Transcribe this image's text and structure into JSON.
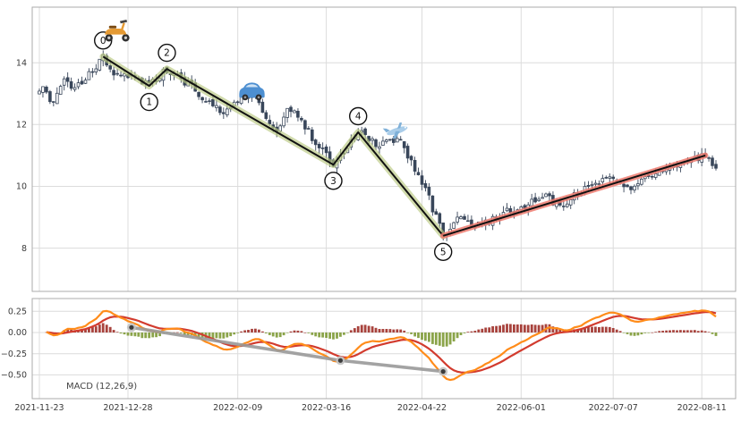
{
  "chart_data": {
    "type": "candlestick",
    "title": "",
    "panels": [
      {
        "id": "price",
        "y_domain": [
          6.6,
          15.8
        ]
      },
      {
        "id": "macd",
        "y_domain": [
          -0.78,
          0.4
        ]
      }
    ],
    "price_tick_labels": [
      {
        "value": 14,
        "label": "14"
      },
      {
        "value": 12,
        "label": "12"
      },
      {
        "value": 10,
        "label": "10"
      },
      {
        "value": 8,
        "label": "8"
      }
    ],
    "macd_tick_labels": [
      {
        "value": 0.25,
        "label": "0.25"
      },
      {
        "value": 0.0,
        "label": "0.00"
      },
      {
        "value": -0.25,
        "label": "−0.25"
      },
      {
        "value": -0.5,
        "label": "−0.50"
      }
    ],
    "x_tick_labels": [
      {
        "date": "2021-11-23",
        "label": "2021-11-23"
      },
      {
        "date": "2021-12-28",
        "label": "2021-12-28"
      },
      {
        "date": "2022-02-09",
        "label": "2022-02-09"
      },
      {
        "date": "2022-03-16",
        "label": "2022-03-16"
      },
      {
        "date": "2022-04-22",
        "label": "2022-04-22"
      },
      {
        "date": "2022-06-01",
        "label": "2022-06-01"
      },
      {
        "date": "2022-07-07",
        "label": "2022-07-07"
      },
      {
        "date": "2022-08-11",
        "label": "2022-08-11"
      }
    ],
    "date_start": "2021-11-23",
    "date_end": "2022-08-17",
    "price_path": [
      {
        "date": "2021-11-23",
        "price": 13.0
      },
      {
        "date": "2021-11-24",
        "price": 13.1
      },
      {
        "date": "2021-11-26",
        "price": 12.75
      },
      {
        "date": "2021-11-30",
        "price": 12.9
      },
      {
        "date": "2021-12-02",
        "price": 13.6
      },
      {
        "date": "2021-12-06",
        "price": 13.1
      },
      {
        "date": "2021-12-09",
        "price": 13.4
      },
      {
        "date": "2021-12-17",
        "price": 14.2
      },
      {
        "date": "2021-12-22",
        "price": 13.6
      },
      {
        "date": "2021-12-29",
        "price": 13.6
      },
      {
        "date": "2022-01-05",
        "price": 13.25
      },
      {
        "date": "2022-01-12",
        "price": 13.8
      },
      {
        "date": "2022-01-21",
        "price": 13.2
      },
      {
        "date": "2022-02-02",
        "price": 12.4
      },
      {
        "date": "2022-02-09",
        "price": 12.7
      },
      {
        "date": "2022-02-15",
        "price": 13.0
      },
      {
        "date": "2022-02-24",
        "price": 11.8
      },
      {
        "date": "2022-03-01",
        "price": 12.6
      },
      {
        "date": "2022-03-08",
        "price": 11.9
      },
      {
        "date": "2022-03-18",
        "price": 10.7
      },
      {
        "date": "2022-03-29",
        "price": 11.75
      },
      {
        "date": "2022-04-06",
        "price": 11.3
      },
      {
        "date": "2022-04-13",
        "price": 11.6
      },
      {
        "date": "2022-04-21",
        "price": 10.4
      },
      {
        "date": "2022-04-26",
        "price": 9.6
      },
      {
        "date": "2022-05-02",
        "price": 8.4
      },
      {
        "date": "2022-05-06",
        "price": 9.0
      },
      {
        "date": "2022-05-12",
        "price": 8.7
      },
      {
        "date": "2022-05-19",
        "price": 8.9
      },
      {
        "date": "2022-05-26",
        "price": 9.2
      },
      {
        "date": "2022-06-02",
        "price": 9.3
      },
      {
        "date": "2022-06-09",
        "price": 9.7
      },
      {
        "date": "2022-06-16",
        "price": 9.4
      },
      {
        "date": "2022-06-24",
        "price": 9.8
      },
      {
        "date": "2022-06-30",
        "price": 10.1
      },
      {
        "date": "2022-07-07",
        "price": 10.35
      },
      {
        "date": "2022-07-14",
        "price": 9.9
      },
      {
        "date": "2022-07-21",
        "price": 10.3
      },
      {
        "date": "2022-07-28",
        "price": 10.5
      },
      {
        "date": "2022-08-04",
        "price": 10.7
      },
      {
        "date": "2022-08-11",
        "price": 11.0
      },
      {
        "date": "2022-08-15",
        "price": 10.85
      },
      {
        "date": "2022-08-17",
        "price": 10.6
      }
    ],
    "elliott_wave": {
      "line_color": "#111111",
      "band_color": "#b8c87f",
      "points": [
        {
          "label": "0",
          "date": "2021-12-17",
          "price": 14.2,
          "label_pos": "above"
        },
        {
          "label": "1",
          "date": "2022-01-05",
          "price": 13.25,
          "label_pos": "below"
        },
        {
          "label": "2",
          "date": "2022-01-12",
          "price": 13.8,
          "label_pos": "above"
        },
        {
          "label": "3",
          "date": "2022-03-18",
          "price": 10.7,
          "label_pos": "below"
        },
        {
          "label": "4",
          "date": "2022-03-29",
          "price": 11.75,
          "label_pos": "above"
        },
        {
          "label": "5",
          "date": "2022-05-02",
          "price": 8.4,
          "label_pos": "below"
        }
      ]
    },
    "trend_line": {
      "from": {
        "date": "2022-05-02",
        "price": 8.4
      },
      "to": {
        "date": "2022-08-12",
        "price": 11.0
      },
      "line_color": "#111111",
      "band_color": "#ef7b70"
    },
    "icons": [
      {
        "name": "scooter-icon",
        "date": "2021-12-23",
        "price": 15.05
      },
      {
        "name": "car-icon",
        "date": "2022-02-15",
        "price": 13.1
      },
      {
        "name": "airplane-icon",
        "date": "2022-04-13",
        "price": 11.8
      }
    ],
    "macd": {
      "label": "MACD (12,26,9)",
      "fast": 12,
      "slow": 26,
      "signal_period": 9,
      "macd_color": "#ff8c1a",
      "signal_color": "#d23b2e",
      "hist_pos_color": "#9e2f28",
      "hist_neg_color": "#7e9a36",
      "scale_max": 0.26,
      "scale_min": -0.56,
      "gray_line": {
        "color": "#999999",
        "points": [
          {
            "date": "2021-12-29",
            "value": 0.06
          },
          {
            "date": "2022-03-22",
            "value": -0.33
          },
          {
            "date": "2022-05-02",
            "value": -0.46
          }
        ]
      }
    },
    "style": {
      "candle_color": "#39465a",
      "grid_color": "#dcdcdc",
      "border_color": "#ababab",
      "axis_label_color": "#3a3a3a"
    }
  }
}
